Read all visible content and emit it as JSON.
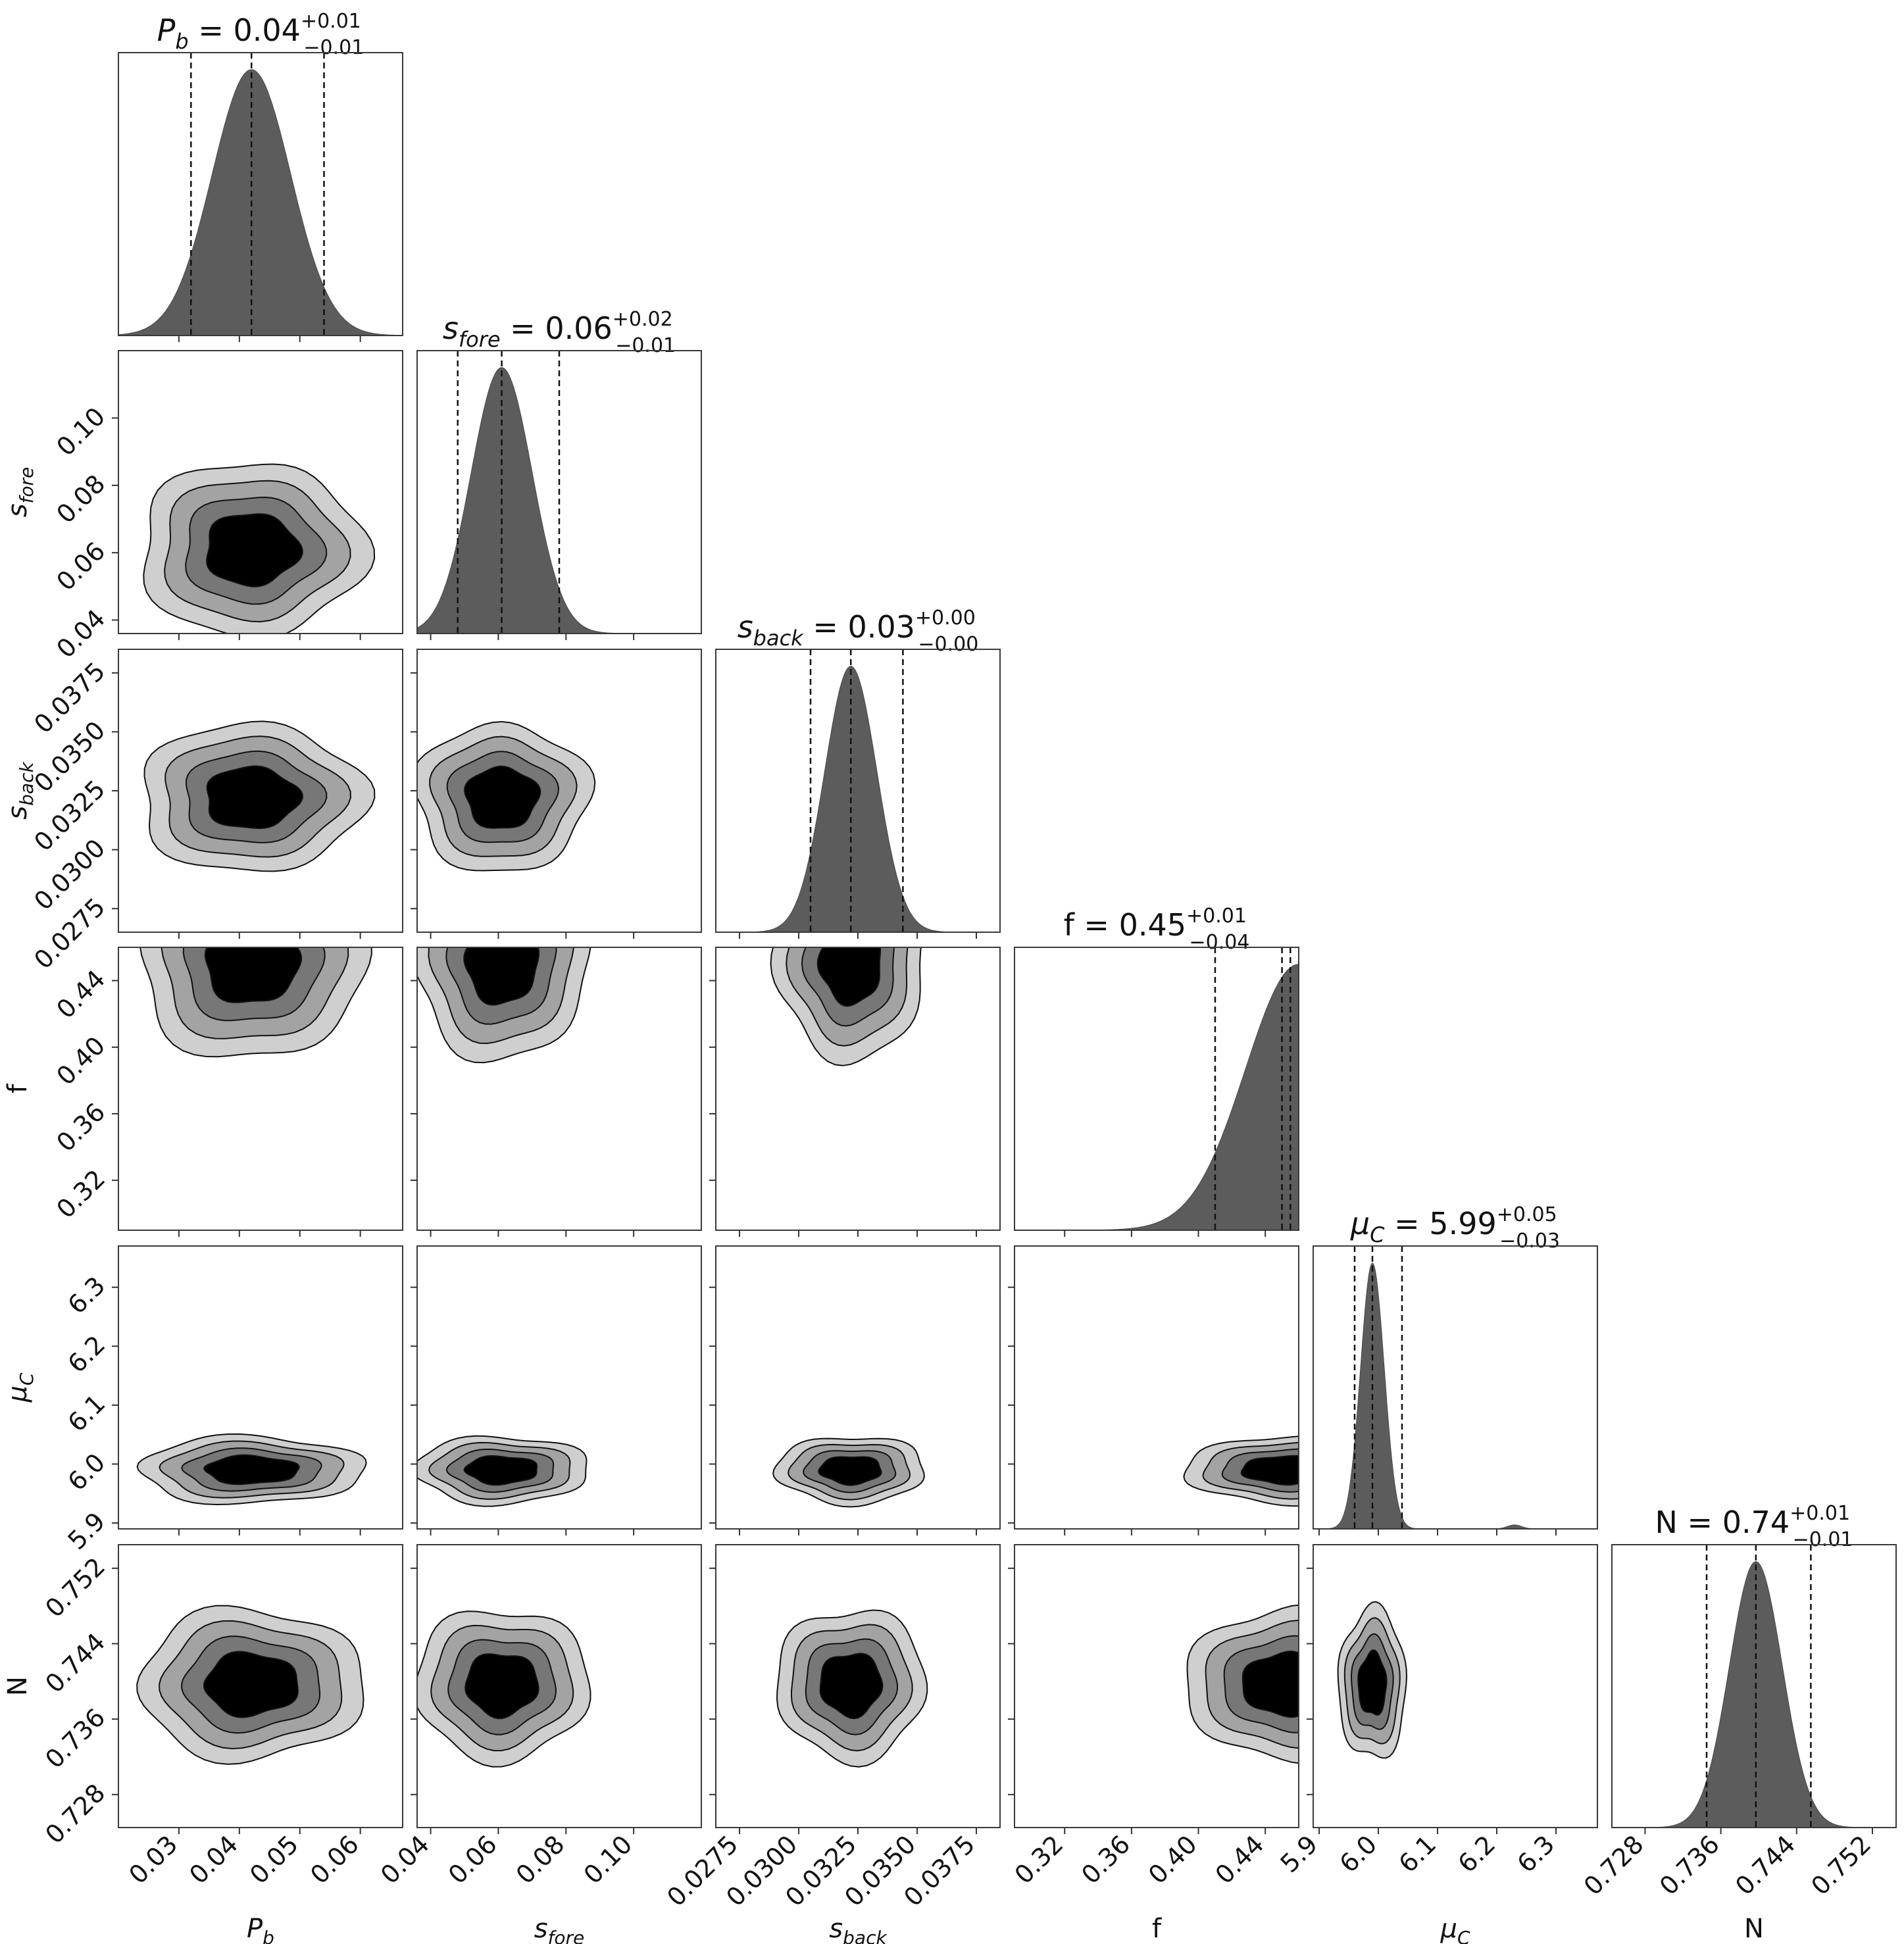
{
  "chart_data": {
    "type": "corner",
    "parameters": [
      {
        "id": "Pb",
        "main": "P",
        "sub": "b",
        "italic": true,
        "median": 0.042,
        "q16": 0.032,
        "q84": 0.054,
        "sd": 0.0065,
        "dist": "normal",
        "range": [
          0.02,
          0.067
        ],
        "ticks": [
          0.03,
          0.04,
          0.05,
          0.06
        ],
        "tick_labels": [
          "0.03",
          "0.04",
          "0.05",
          "0.06"
        ],
        "title_prefix": "P",
        "title_sub": "b",
        "title_value": "= 0.04",
        "title_plus": "+0.01",
        "title_minus": "−0.01"
      },
      {
        "id": "sfore",
        "main": "s",
        "sub": "fore",
        "italic": true,
        "median": 0.061,
        "q16": 0.048,
        "q84": 0.078,
        "sd": 0.009,
        "dist": "normal",
        "range": [
          0.036,
          0.12
        ],
        "ticks": [
          0.04,
          0.06,
          0.08,
          0.1
        ],
        "tick_labels": [
          "0.04",
          "0.06",
          "0.08",
          "0.10"
        ],
        "title_prefix": "s",
        "title_sub": "fore",
        "title_value": "= 0.06",
        "title_plus": "+0.02",
        "title_minus": "−0.01"
      },
      {
        "id": "sback",
        "main": "s",
        "sub": "back",
        "italic": true,
        "median": 0.0322,
        "q16": 0.0305,
        "q84": 0.0344,
        "sd": 0.0011,
        "dist": "normal",
        "range": [
          0.0265,
          0.0385
        ],
        "ticks": [
          0.0275,
          0.03,
          0.0325,
          0.035,
          0.0375
        ],
        "tick_labels": [
          "0.0275",
          "0.0300",
          "0.0325",
          "0.0350",
          "0.0375"
        ],
        "title_prefix": "s",
        "title_sub": "back",
        "title_value": "= 0.03",
        "title_plus": "+0.00",
        "title_minus": "−0.00"
      },
      {
        "id": "f",
        "main": "f",
        "sub": "",
        "italic": false,
        "median": 0.45,
        "q16": 0.41,
        "q84": 0.455,
        "sd": 0.02,
        "dist": "rising",
        "range": [
          0.29,
          0.46
        ],
        "ticks": [
          0.32,
          0.36,
          0.4,
          0.44
        ],
        "tick_labels": [
          "0.32",
          "0.36",
          "0.40",
          "0.44"
        ],
        "title_prefix": "f",
        "title_sub": "",
        "title_value": "= 0.45",
        "title_plus": "+0.01",
        "title_minus": "−0.04"
      },
      {
        "id": "muC",
        "main": "μ",
        "sub": "C",
        "italic": true,
        "median": 5.99,
        "q16": 5.96,
        "q84": 6.04,
        "sd": 0.02,
        "dist": "normal",
        "range": [
          5.89,
          6.37
        ],
        "ticks": [
          5.9,
          6.0,
          6.1,
          6.2,
          6.3
        ],
        "tick_labels": [
          "5.9",
          "6.0",
          "6.1",
          "6.2",
          "6.3"
        ],
        "title_prefix": "μ",
        "title_sub": "C",
        "title_value": "= 5.99",
        "title_plus": "+0.05",
        "title_minus": "−0.03"
      },
      {
        "id": "N",
        "main": "N",
        "sub": "",
        "italic": false,
        "median": 0.7397,
        "q16": 0.7345,
        "q84": 0.7455,
        "sd": 0.0028,
        "dist": "normal",
        "range": [
          0.7245,
          0.7545
        ],
        "ticks": [
          0.728,
          0.736,
          0.744,
          0.752
        ],
        "tick_labels": [
          "0.728",
          "0.736",
          "0.744",
          "0.752"
        ],
        "title_prefix": "N",
        "title_sub": "",
        "title_value": "= 0.74",
        "title_plus": "+0.01",
        "title_minus": "−0.01"
      }
    ],
    "contour_levels": [
      0.5,
      1.0,
      1.5,
      2.0
    ],
    "contour_fills": [
      "#cfcfcf",
      "#a3a3a3",
      "#777777",
      "#000000"
    ],
    "histogram_color": "#5c5c5c",
    "quantile_line_style": "dashed",
    "grid": false
  }
}
